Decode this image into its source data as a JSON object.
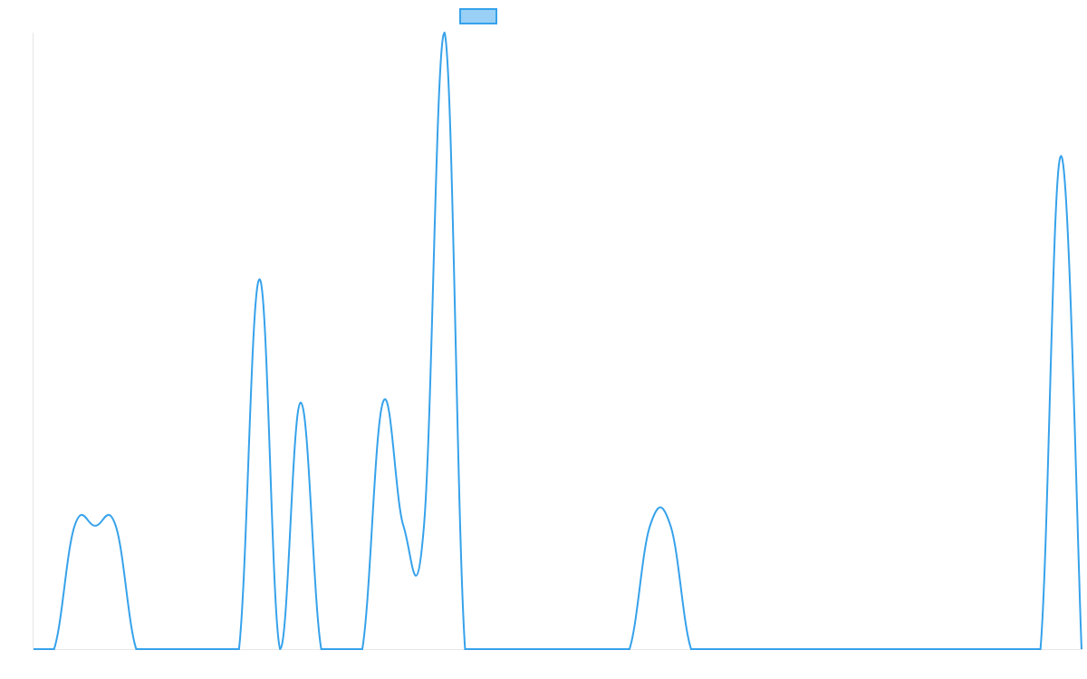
{
  "chart_data": {
    "type": "line",
    "title": "",
    "xlabel": "",
    "ylabel": "",
    "grid": false,
    "legend": {
      "position": "top-center",
      "label": ""
    },
    "colors": {
      "line": "#36A2EB",
      "legend_fill": "#9AD0F5",
      "axis": "#E6E6E6"
    },
    "x": [
      0,
      1,
      2,
      3,
      4,
      5,
      6,
      7,
      8,
      9,
      10,
      11,
      12,
      13,
      14,
      15,
      16,
      17,
      18,
      19,
      20,
      21,
      22,
      23,
      24,
      25,
      26,
      27,
      28,
      29,
      30,
      31,
      32,
      33,
      34,
      35,
      36,
      37,
      38,
      39,
      40,
      41,
      42,
      43,
      44,
      45,
      46,
      47,
      48,
      49,
      50,
      51
    ],
    "series": [
      {
        "values": [
          0,
          0,
          1,
          1,
          1,
          0,
          0,
          0,
          0,
          0,
          0,
          3,
          0,
          2,
          0,
          0,
          0,
          2,
          1,
          1,
          5,
          0,
          0,
          0,
          0,
          0,
          0,
          0,
          0,
          0,
          1,
          1,
          0,
          0,
          0,
          0,
          0,
          0,
          0,
          0,
          0,
          0,
          0,
          0,
          0,
          0,
          0,
          0,
          0,
          0,
          4,
          0
        ]
      }
    ],
    "ylim": [
      0,
      5
    ]
  }
}
